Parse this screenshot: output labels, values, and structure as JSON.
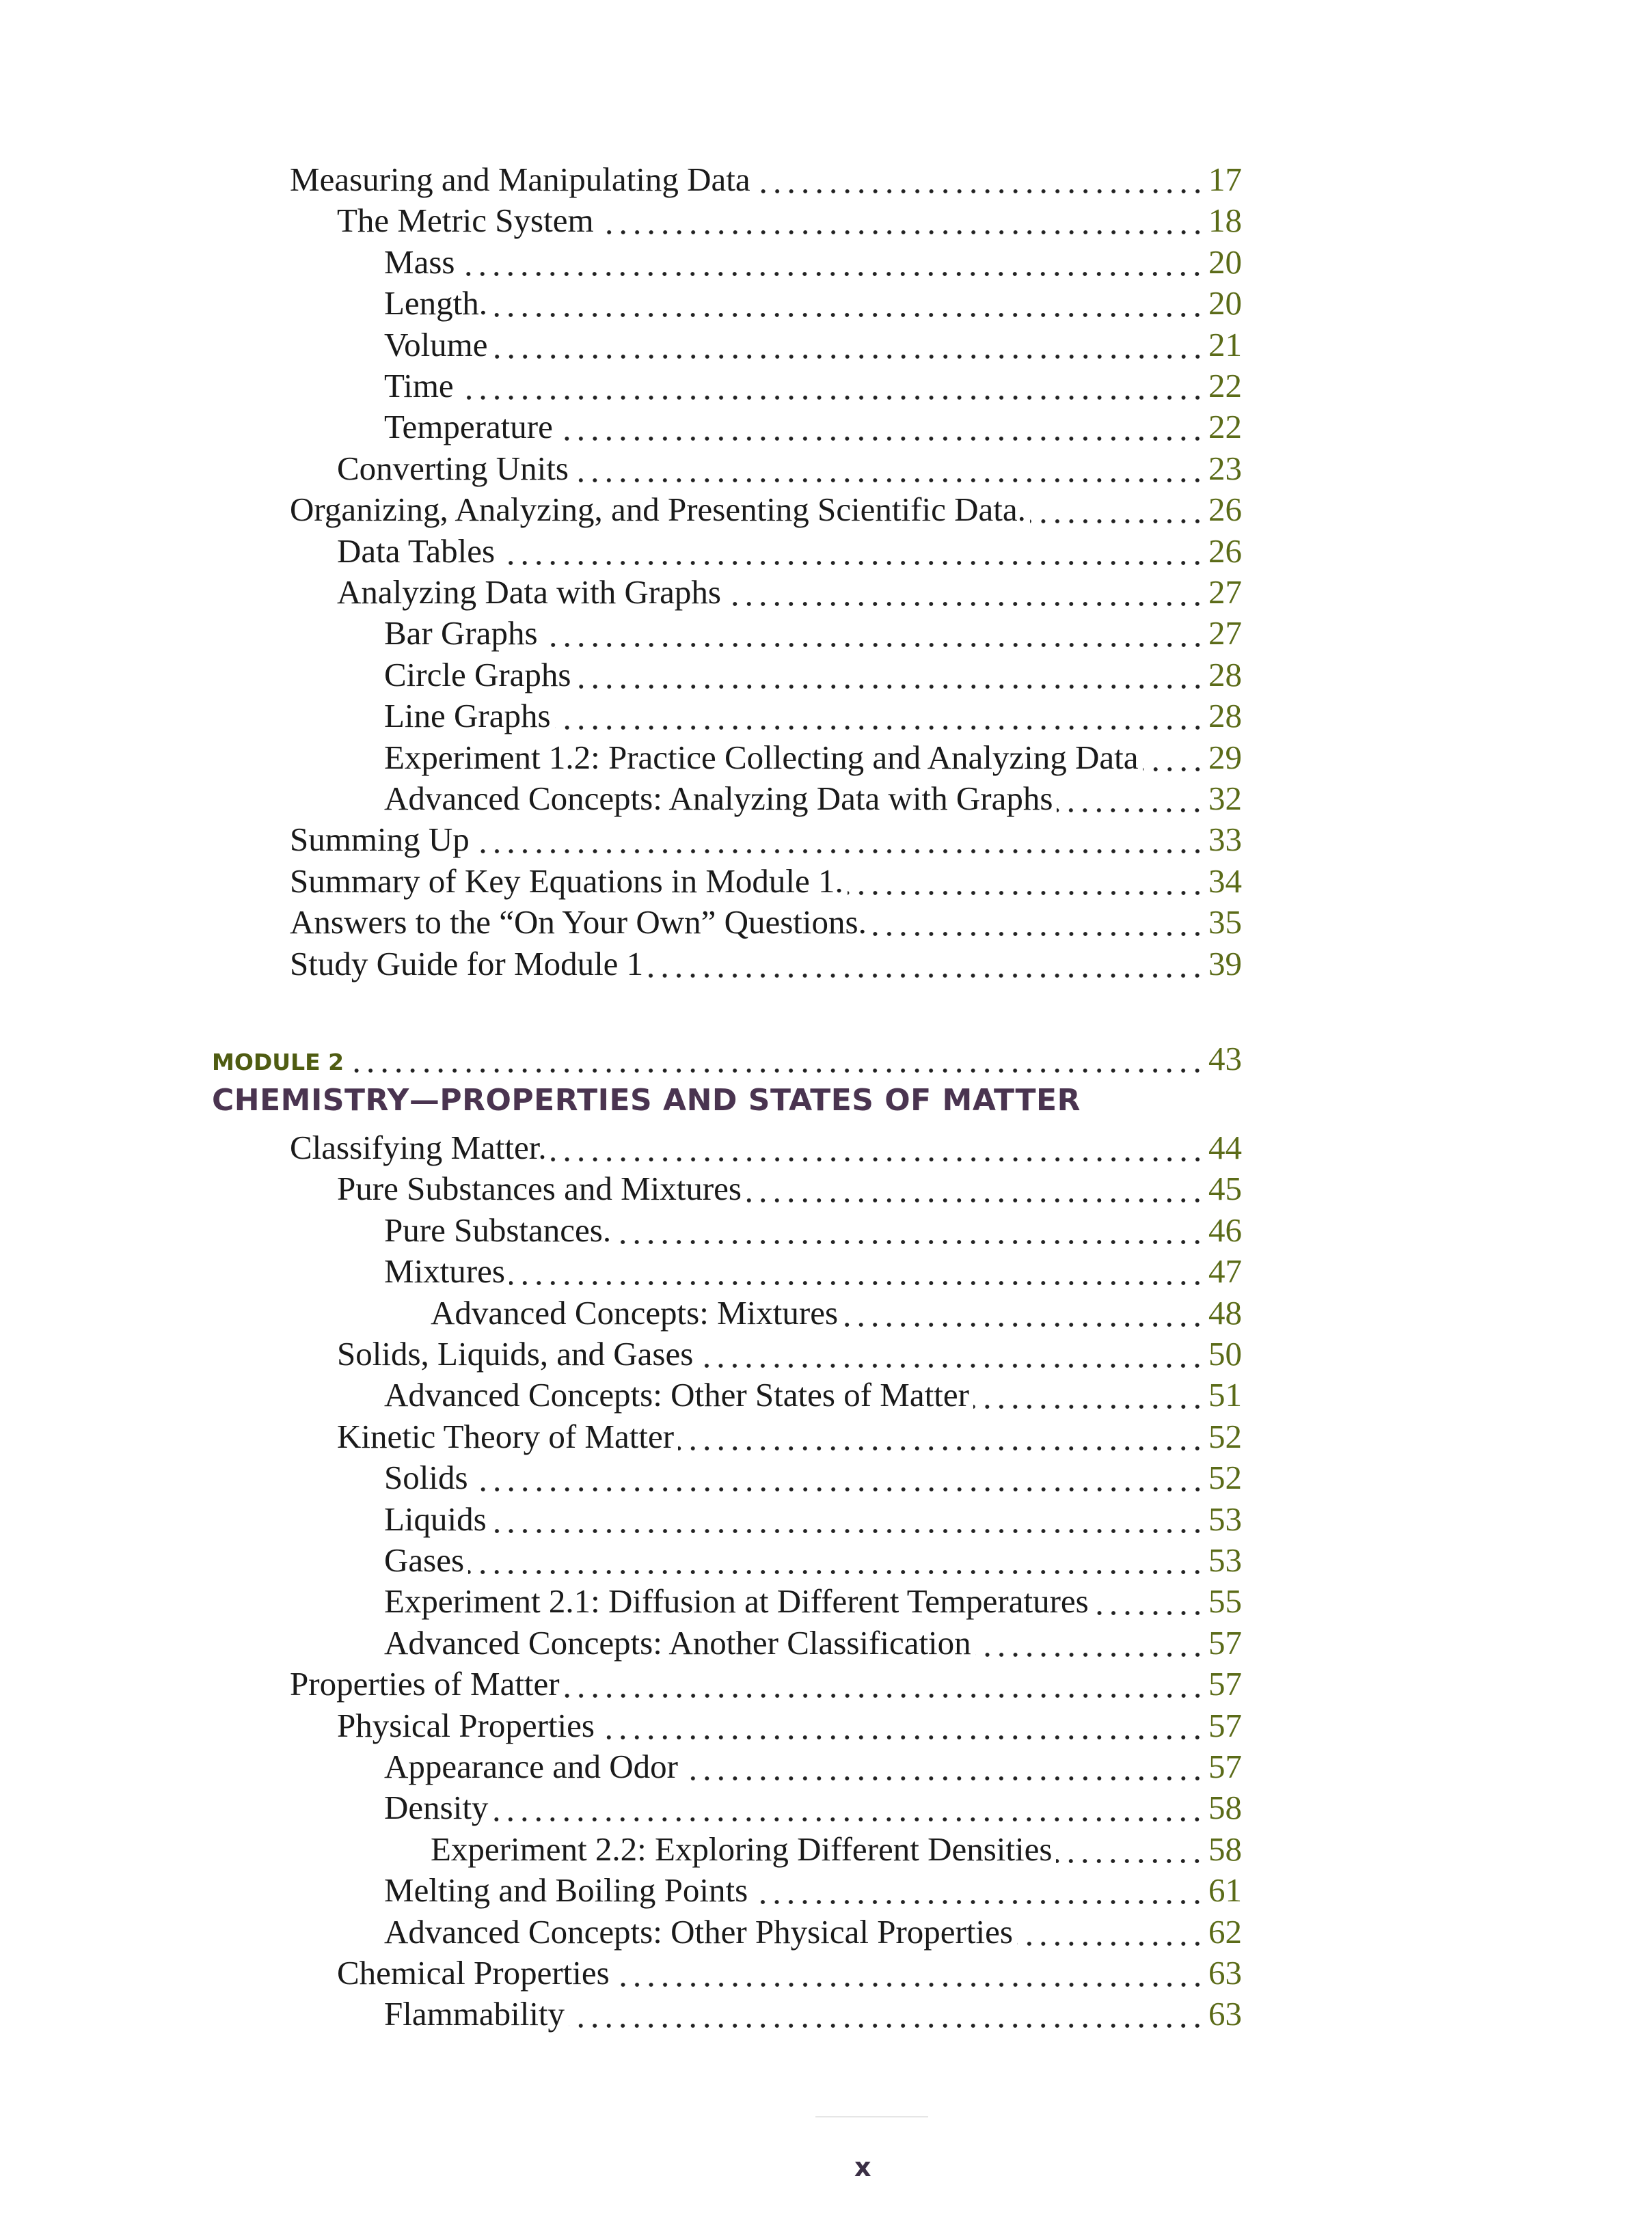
{
  "colors": {
    "page_number": "#5b6b18",
    "module_label": "#4f5c12",
    "module_title": "#4a3450"
  },
  "entries_top": [
    {
      "label": "Measuring and Manipulating Data",
      "page": "17",
      "level": 0
    },
    {
      "label": "The Metric System",
      "page": "18",
      "level": 1
    },
    {
      "label": "Mass",
      "page": "20",
      "level": 2
    },
    {
      "label": "Length.",
      "page": "20",
      "level": 2
    },
    {
      "label": "Volume",
      "page": "21",
      "level": 2
    },
    {
      "label": "Time",
      "page": "22",
      "level": 2
    },
    {
      "label": "Temperature",
      "page": "22",
      "level": 2
    },
    {
      "label": "Converting Units",
      "page": "23",
      "level": 1
    },
    {
      "label": "Organizing, Analyzing, and Presenting Scientific Data.",
      "page": "26",
      "level": 0
    },
    {
      "label": "Data Tables",
      "page": "26",
      "level": 1
    },
    {
      "label": "Analyzing Data with Graphs",
      "page": "27",
      "level": 1
    },
    {
      "label": "Bar Graphs",
      "page": "27",
      "level": 2
    },
    {
      "label": "Circle Graphs",
      "page": "28",
      "level": 2
    },
    {
      "label": "Line Graphs",
      "page": "28",
      "level": 2
    },
    {
      "label": "Experiment 1.2: Practice Collecting and Analyzing Data",
      "page": "29",
      "level": 2
    },
    {
      "label": "Advanced Concepts: Analyzing Data with Graphs",
      "page": "32",
      "level": 2
    },
    {
      "label": "Summing Up",
      "page": "33",
      "level": 0
    },
    {
      "label": "Summary of Key Equations in Module 1.",
      "page": "34",
      "level": 0
    },
    {
      "label": "Answers to the “On Your Own” Questions.",
      "page": "35",
      "level": 0
    },
    {
      "label": "Study Guide for Module 1",
      "page": "39",
      "level": 0
    }
  ],
  "module": {
    "label": "MODULE 2",
    "page": "43",
    "title": "CHEMISTRY—PROPERTIES AND STATES OF MATTER"
  },
  "entries_module": [
    {
      "label": "Classifying Matter.",
      "page": "44",
      "level": 0
    },
    {
      "label": "Pure Substances and Mixtures",
      "page": "45",
      "level": 1
    },
    {
      "label": "Pure Substances.",
      "page": "46",
      "level": 2
    },
    {
      "label": "Mixtures",
      "page": "47",
      "level": 2
    },
    {
      "label": "Advanced Concepts: Mixtures",
      "page": "48",
      "level": 3
    },
    {
      "label": "Solids, Liquids, and Gases",
      "page": "50",
      "level": 1
    },
    {
      "label": "Advanced Concepts: Other States of Matter",
      "page": "51",
      "level": 2
    },
    {
      "label": "Kinetic Theory of Matter",
      "page": "52",
      "level": 1
    },
    {
      "label": "Solids",
      "page": "52",
      "level": 2
    },
    {
      "label": "Liquids",
      "page": "53",
      "level": 2
    },
    {
      "label": "Gases",
      "page": "53",
      "level": 2
    },
    {
      "label": "Experiment 2.1: Diffusion at Different Temperatures",
      "page": "55",
      "level": 2
    },
    {
      "label": "Advanced Concepts: Another Classification",
      "page": "57",
      "level": 2
    },
    {
      "label": "Properties of Matter",
      "page": "57",
      "level": 0
    },
    {
      "label": "Physical Properties",
      "page": "57",
      "level": 1
    },
    {
      "label": "Appearance and Odor",
      "page": "57",
      "level": 2
    },
    {
      "label": "Density",
      "page": "58",
      "level": 2
    },
    {
      "label": "Experiment 2.2: Exploring Different Densities",
      "page": "58",
      "level": 3
    },
    {
      "label": "Melting and Boiling Points",
      "page": "61",
      "level": 2
    },
    {
      "label": "Advanced Concepts: Other Physical Properties",
      "page": "62",
      "level": 2
    },
    {
      "label": "Chemical Properties",
      "page": "63",
      "level": 1
    },
    {
      "label": "Flammability",
      "page": "63",
      "level": 2
    }
  ],
  "folio": "x"
}
